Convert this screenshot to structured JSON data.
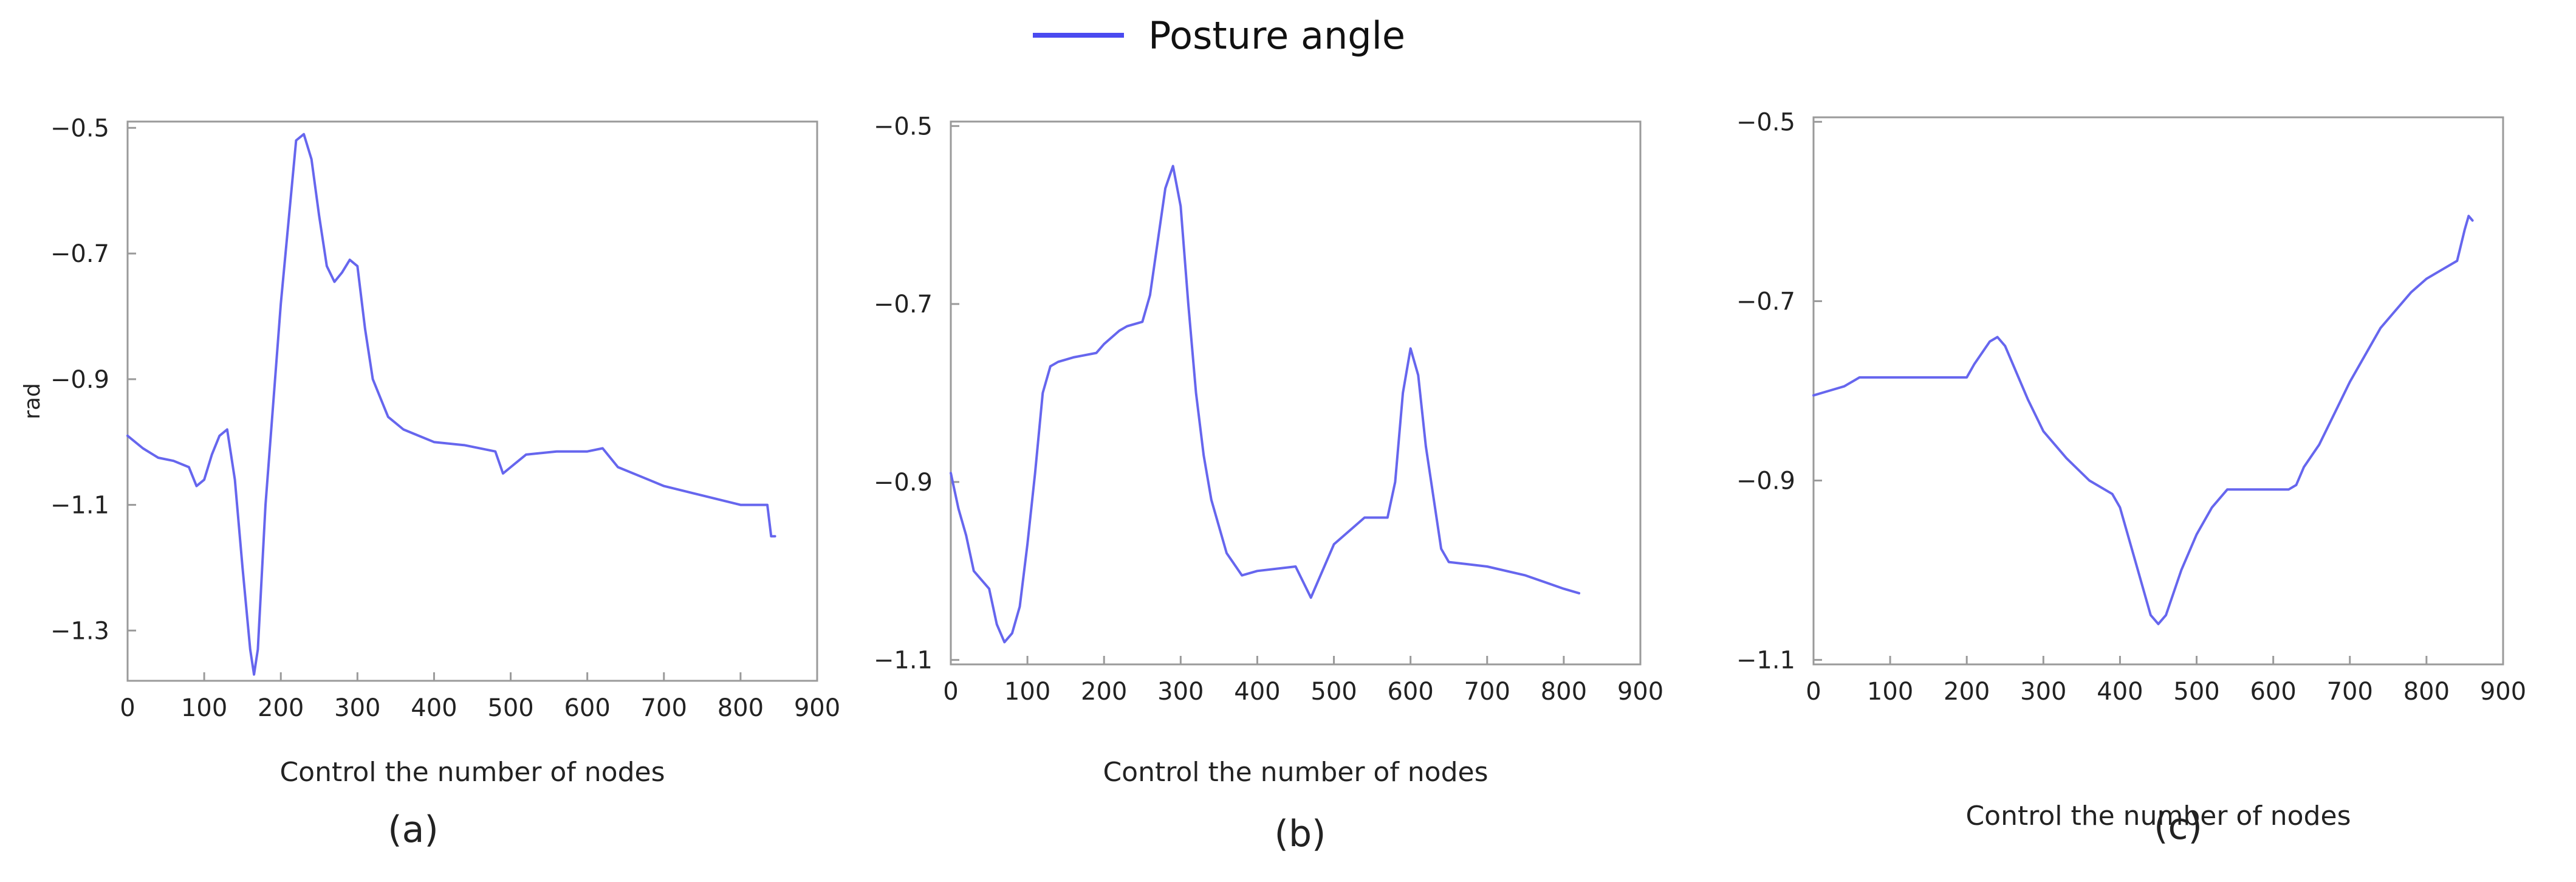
{
  "legend": {
    "label": "Posture angle"
  },
  "colors": {
    "series": "#6666ee",
    "legend": "#4a4af0",
    "axes": "#9a9a9a"
  },
  "chart_data": [
    {
      "type": "line",
      "panel_label": "(a)",
      "xlabel": "Control the number of nodes",
      "ylabel": "rad",
      "xlim": [
        0,
        900
      ],
      "ylim": [
        -1.38,
        -0.49
      ],
      "xticks": [
        0,
        100,
        200,
        300,
        400,
        500,
        600,
        700,
        800,
        900
      ],
      "yticks": [
        -0.5,
        -0.7,
        -0.9,
        -1.1,
        -1.3
      ],
      "ytick_labels": [
        "−0.5",
        "−0.7",
        "−0.9",
        "−1.1",
        "−1.3"
      ],
      "grid": false,
      "series": [
        {
          "name": "Posture angle",
          "x": [
            0,
            20,
            40,
            60,
            80,
            90,
            100,
            110,
            120,
            130,
            140,
            150,
            160,
            165,
            170,
            180,
            200,
            220,
            230,
            240,
            250,
            260,
            270,
            280,
            290,
            300,
            310,
            320,
            340,
            360,
            380,
            400,
            440,
            480,
            490,
            500,
            520,
            560,
            600,
            620,
            640,
            680,
            700,
            750,
            800,
            830,
            835,
            840,
            845
          ],
          "y": [
            -0.99,
            -1.01,
            -1.025,
            -1.03,
            -1.04,
            -1.07,
            -1.06,
            -1.02,
            -0.99,
            -0.98,
            -1.06,
            -1.2,
            -1.33,
            -1.37,
            -1.33,
            -1.1,
            -0.78,
            -0.52,
            -0.51,
            -0.55,
            -0.64,
            -0.72,
            -0.745,
            -0.73,
            -0.71,
            -0.72,
            -0.82,
            -0.9,
            -0.96,
            -0.98,
            -0.99,
            -1.0,
            -1.005,
            -1.015,
            -1.05,
            -1.04,
            -1.02,
            -1.015,
            -1.015,
            -1.01,
            -1.04,
            -1.06,
            -1.07,
            -1.085,
            -1.1,
            -1.1,
            -1.1,
            -1.15,
            -1.15
          ]
        }
      ]
    },
    {
      "type": "line",
      "panel_label": "(b)",
      "xlabel": "Control the number of nodes",
      "ylabel": "",
      "xlim": [
        0,
        900
      ],
      "ylim": [
        -1.105,
        -0.495
      ],
      "xticks": [
        0,
        100,
        200,
        300,
        400,
        500,
        600,
        700,
        800,
        900
      ],
      "yticks": [
        -0.5,
        -0.7,
        -0.9,
        -1.1
      ],
      "ytick_labels": [
        "−0.5",
        "−0.7",
        "−0.9",
        "−1.1"
      ],
      "grid": false,
      "series": [
        {
          "name": "Posture angle",
          "x": [
            0,
            10,
            20,
            30,
            40,
            50,
            60,
            70,
            80,
            90,
            100,
            110,
            120,
            130,
            140,
            160,
            190,
            200,
            220,
            230,
            250,
            260,
            270,
            280,
            290,
            300,
            310,
            320,
            330,
            340,
            360,
            380,
            400,
            450,
            470,
            480,
            500,
            540,
            570,
            580,
            590,
            600,
            610,
            620,
            640,
            650,
            700,
            750,
            800,
            820
          ],
          "y": [
            -0.89,
            -0.93,
            -0.96,
            -1.0,
            -1.01,
            -1.02,
            -1.06,
            -1.08,
            -1.07,
            -1.04,
            -0.97,
            -0.89,
            -0.8,
            -0.77,
            -0.765,
            -0.76,
            -0.755,
            -0.745,
            -0.73,
            -0.725,
            -0.72,
            -0.69,
            -0.63,
            -0.57,
            -0.545,
            -0.59,
            -0.7,
            -0.8,
            -0.87,
            -0.92,
            -0.98,
            -1.005,
            -1.0,
            -0.995,
            -1.03,
            -1.01,
            -0.97,
            -0.94,
            -0.94,
            -0.9,
            -0.8,
            -0.75,
            -0.78,
            -0.86,
            -0.975,
            -0.99,
            -0.995,
            -1.005,
            -1.02,
            -1.025
          ]
        }
      ]
    },
    {
      "type": "line",
      "panel_label": "(c)",
      "xlabel": "Control the number of nodes",
      "ylabel": "",
      "xlim": [
        0,
        900
      ],
      "ylim": [
        -1.105,
        -0.495
      ],
      "xticks": [
        0,
        100,
        200,
        300,
        400,
        500,
        600,
        700,
        800,
        900
      ],
      "yticks": [
        -0.5,
        -0.7,
        -0.9,
        -1.1
      ],
      "ytick_labels": [
        "−0.5",
        "−0.7",
        "−0.9",
        "−1.1"
      ],
      "grid": false,
      "series": [
        {
          "name": "Posture angle",
          "x": [
            0,
            20,
            40,
            60,
            100,
            150,
            200,
            210,
            230,
            240,
            250,
            260,
            280,
            300,
            330,
            360,
            390,
            400,
            420,
            440,
            450,
            460,
            480,
            500,
            520,
            540,
            560,
            620,
            630,
            640,
            660,
            680,
            700,
            740,
            780,
            800,
            820,
            840,
            850,
            855,
            860
          ],
          "y": [
            -0.805,
            -0.8,
            -0.795,
            -0.785,
            -0.785,
            -0.785,
            -0.785,
            -0.77,
            -0.745,
            -0.74,
            -0.75,
            -0.77,
            -0.81,
            -0.845,
            -0.875,
            -0.9,
            -0.915,
            -0.93,
            -0.99,
            -1.05,
            -1.06,
            -1.05,
            -1.0,
            -0.96,
            -0.93,
            -0.91,
            -0.91,
            -0.91,
            -0.905,
            -0.885,
            -0.86,
            -0.825,
            -0.79,
            -0.73,
            -0.69,
            -0.675,
            -0.665,
            -0.655,
            -0.62,
            -0.605,
            -0.61
          ]
        }
      ]
    }
  ]
}
